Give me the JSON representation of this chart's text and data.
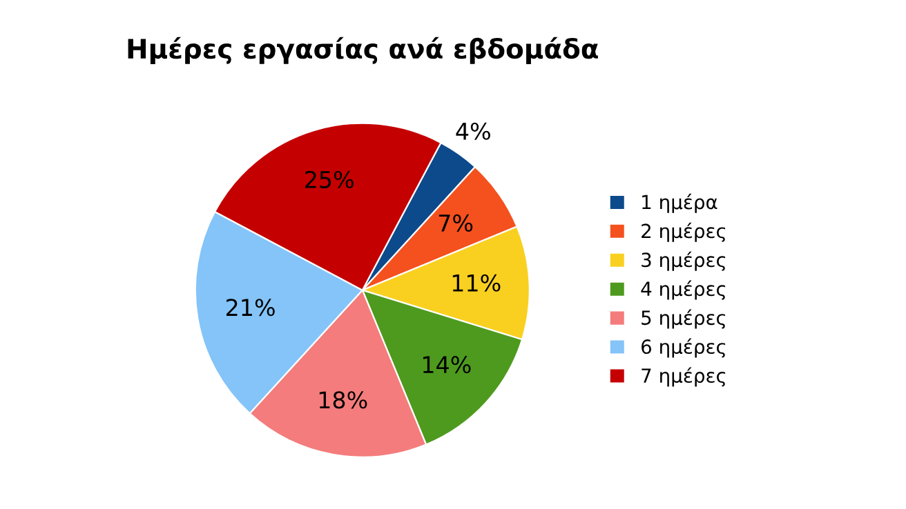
{
  "chart_data": {
    "type": "pie",
    "title": "Ημέρες εργασίας ανά εβδομάδα",
    "categories": [
      "1 ημέρα",
      "2 ημέρες",
      "3 ημέρες",
      "4 ημέρες",
      "5 ημέρες",
      "6 ημέρες",
      "7 ημέρες"
    ],
    "values": [
      4,
      7,
      11,
      14,
      18,
      21,
      25
    ],
    "colors": [
      "#0d4a8c",
      "#f4511e",
      "#f9d020",
      "#4e9a1e",
      "#f47c7c",
      "#84c4f8",
      "#c50000"
    ],
    "value_labels": [
      "4%",
      "7%",
      "11%",
      "14%",
      "18%",
      "21%",
      "25%"
    ],
    "legend": "right"
  }
}
